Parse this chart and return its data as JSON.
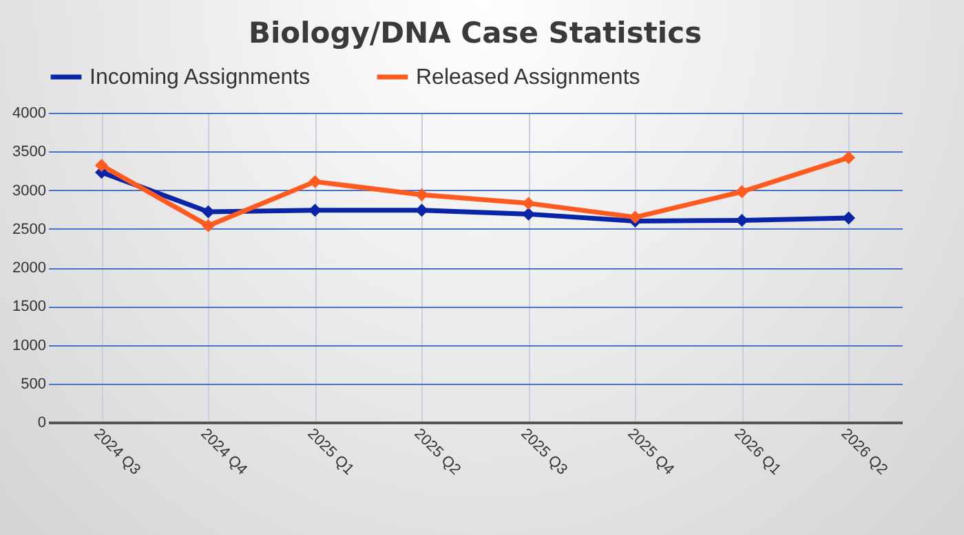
{
  "chart_data": {
    "type": "line",
    "title": "Biology/DNA Case Statistics",
    "categories": [
      "2024 Q3",
      "2024 Q4",
      "2025 Q1",
      "2025 Q2",
      "2025 Q3",
      "2025 Q4",
      "2026 Q1",
      "2026 Q2"
    ],
    "series": [
      {
        "name": "Incoming Assignments",
        "color": "#0a24a8",
        "values": [
          3230,
          2720,
          2740,
          2740,
          2690,
          2600,
          2610,
          2640
        ]
      },
      {
        "name": "Released Assignments",
        "color": "#ff5a1f",
        "values": [
          3320,
          2540,
          3110,
          2940,
          2830,
          2650,
          2980,
          3420
        ]
      }
    ],
    "ylim": [
      0,
      4000
    ],
    "yticks": [
      0,
      500,
      1000,
      1500,
      2000,
      2500,
      3000,
      3500,
      4000
    ],
    "grid": true,
    "legend": "top",
    "marker": "diamond",
    "line_style": "solid"
  }
}
